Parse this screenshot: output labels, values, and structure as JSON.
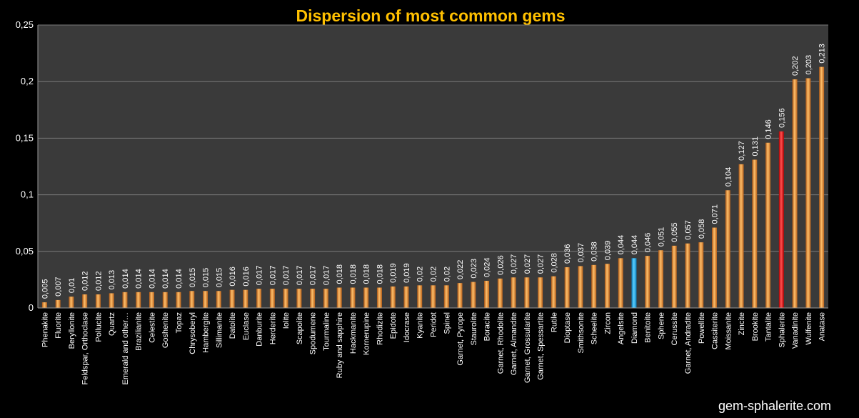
{
  "chart_data": {
    "type": "bar",
    "title": "Dispersion of most common gems",
    "xlabel": "",
    "ylabel": "",
    "ylim": [
      0,
      0.25
    ],
    "yticks": [
      {
        "value": 0,
        "label": "0"
      },
      {
        "value": 0.05,
        "label": "0,05"
      },
      {
        "value": 0.1,
        "label": "0,1"
      },
      {
        "value": 0.15,
        "label": "0,15"
      },
      {
        "value": 0.2,
        "label": "0,2"
      },
      {
        "value": 0.25,
        "label": "0,25"
      }
    ],
    "grid": true,
    "categories": [
      "Phenakite",
      "Fluorite",
      "Beryllonite",
      "Feldspar, Orthoclase",
      "Pollucite",
      "Quartz",
      "Emerald and other…",
      "Brazilianite",
      "Celestite",
      "Goshenite",
      "Topaz",
      "Chrysoberyl",
      "Hambergite",
      "Sillimanite",
      "Datolite",
      "Euclase",
      "Danburite",
      "Herderite",
      "Iolite",
      "Scapolite",
      "Spodumene",
      "Tourmaline",
      "Ruby and sapphire",
      "Hackmanite",
      "Kornerupine",
      "Rhodizite",
      "Epidote",
      "Idocrase",
      "Kyanite",
      "Peridot",
      "Spinel",
      "Garnet, Pyrope",
      "Staurolite",
      "Boracite",
      "Garnet, Rhodolite",
      "Garnet, Almandite",
      "Garnet, Grossularite",
      "Garnet, Spessartite",
      "Rutile",
      "Dioptase",
      "Smithsonite",
      "Scheelite",
      "Zircon",
      "Angelsite",
      "Diamond",
      "Benitoite",
      "Sphene",
      "Cerussite",
      "Garnet, Andradite",
      "Powellite",
      "Cassiterite",
      "Moissanite",
      "Zincite",
      "Brookite",
      "Tantalite",
      "Sphalerite",
      "Vanadinite",
      "Wulfenite",
      "Anatase"
    ],
    "values": [
      0.005,
      0.007,
      0.01,
      0.012,
      0.012,
      0.013,
      0.014,
      0.014,
      0.014,
      0.014,
      0.014,
      0.015,
      0.015,
      0.015,
      0.016,
      0.016,
      0.017,
      0.017,
      0.017,
      0.017,
      0.017,
      0.017,
      0.018,
      0.018,
      0.018,
      0.018,
      0.019,
      0.019,
      0.02,
      0.02,
      0.02,
      0.022,
      0.023,
      0.024,
      0.026,
      0.027,
      0.027,
      0.027,
      0.028,
      0.036,
      0.037,
      0.038,
      0.039,
      0.044,
      0.044,
      0.046,
      0.051,
      0.055,
      0.057,
      0.058,
      0.071,
      0.104,
      0.127,
      0.131,
      0.146,
      0.156,
      0.202,
      0.203,
      0.213
    ],
    "labels": [
      "0,005",
      "0,007",
      "0,01",
      "0,012",
      "0,012",
      "0,013",
      "0,014",
      "0,014",
      "0,014",
      "0,014",
      "0,014",
      "0,015",
      "0,015",
      "0,015",
      "0,016",
      "0,016",
      "0,017",
      "0,017",
      "0,017",
      "0,017",
      "0,017",
      "0,017",
      "0,018",
      "0,018",
      "0,018",
      "0,018",
      "0,019",
      "0,019",
      "0,02",
      "0,02",
      "0,02",
      "0,022",
      "0,023",
      "0,024",
      "0,026",
      "0,027",
      "0,027",
      "0,027",
      "0,028",
      "0,036",
      "0,037",
      "0,038",
      "0,039",
      "0,044",
      "0,044",
      "0,046",
      "0,051",
      "0,055",
      "0,057",
      "0,058",
      "0,071",
      "0,104",
      "0,127",
      "0,131",
      "0,146",
      "0,156",
      "0,202",
      "0,203",
      "0,213"
    ],
    "highlights": {
      "Diamond": "#20b0e8",
      "Sphalerite": "#ff1a1a"
    },
    "highlight_label_colors": {
      "Diamond": "#3cb4f0",
      "Sphalerite": "#ff4a4a"
    },
    "colors": {
      "bar": "#e8862a",
      "bar_light": "#ffc070",
      "plot_bg": "#3a3a3a",
      "grid": "#7a7a7a",
      "axis": "#9a9a9a"
    }
  },
  "watermark": "gem-sphalerite.com"
}
